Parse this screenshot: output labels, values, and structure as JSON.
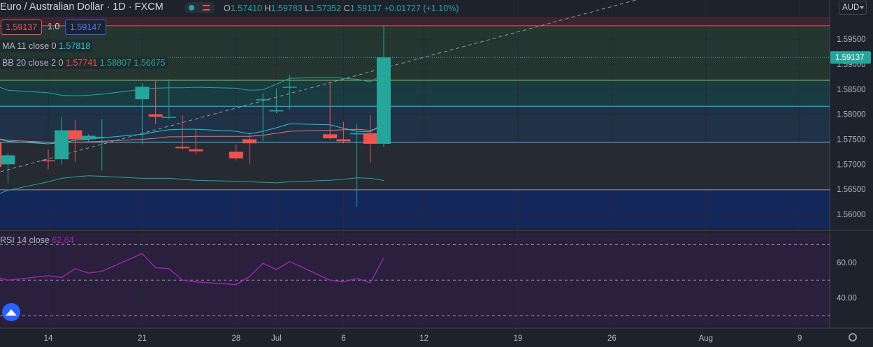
{
  "header": {
    "symbol": "Euro / Australian Dollar",
    "interval": "1D",
    "source": "FXCM",
    "open_label": "O",
    "open": "1.57410",
    "high_label": "H",
    "high": "1.59783",
    "low_label": "L",
    "low": "1.57352",
    "close_label": "C",
    "close": "1.59137",
    "change": "+0.01727 (+1.10%)"
  },
  "quote": {
    "bid": "1.59137",
    "spread": "1.0",
    "ask": "1.59147"
  },
  "indicators": {
    "ma_label": "MA 11 close 0",
    "ma_value": "1.57818",
    "bb_label": "BB 20 close 2 0",
    "bb_basis": "1.57741",
    "bb_upper": "1.58807",
    "bb_lower": "1.56675",
    "rsi_label": "RSI 14 close",
    "rsi_value": "62.64"
  },
  "currency_selector": {
    "value": "AUD",
    "icon": "chevron-down-icon"
  },
  "icons": {
    "logo": "tradingview-logo-icon",
    "settings": "gear-icon",
    "visibility": "eye-icon"
  },
  "colors": {
    "up": "#26a69a",
    "down": "#ef5350",
    "ma": "#26c6da",
    "bb": "#26a69a",
    "rsi": "#9c27b0",
    "price_tag": "#26a69a",
    "background": "#1e222d"
  },
  "chart_data": [
    {
      "type": "candlestick",
      "x_dates": [
        "Jun 10",
        "Jun 11",
        "Jun 14",
        "Jun 15",
        "Jun 16",
        "Jun 17",
        "Jun 18",
        "Jun 21",
        "Jun 22",
        "Jun 23",
        "Jun 24",
        "Jun 25",
        "Jun 28",
        "Jun 29",
        "Jun 30",
        "Jul 1",
        "Jul 2",
        "Jul 5",
        "Jul 6",
        "Jul 7",
        "Jul 8",
        "Jul 9"
      ],
      "open": [
        1.5745,
        1.57,
        1.5708,
        1.571,
        1.5768,
        1.575,
        1.5755,
        1.583,
        1.58,
        1.5795,
        1.5735,
        1.573,
        1.5725,
        1.575,
        1.583,
        1.5808,
        1.5855,
        1.576,
        1.575,
        1.5762,
        1.5762,
        1.5741
      ],
      "high": [
        1.5767,
        1.5722,
        1.573,
        1.5795,
        1.5788,
        1.576,
        1.579,
        1.5862,
        1.5867,
        1.587,
        1.5798,
        1.577,
        1.574,
        1.576,
        1.5842,
        1.5852,
        1.5878,
        1.5863,
        1.5785,
        1.578,
        1.5798,
        1.59783
      ],
      "low": [
        1.569,
        1.5662,
        1.569,
        1.57,
        1.5705,
        1.5745,
        1.5688,
        1.574,
        1.578,
        1.579,
        1.573,
        1.572,
        1.5708,
        1.57,
        1.5747,
        1.5802,
        1.581,
        1.575,
        1.5742,
        1.5615,
        1.5704,
        1.57352
      ],
      "close": [
        1.5695,
        1.5718,
        1.5706,
        1.5768,
        1.575,
        1.5757,
        1.5755,
        1.5855,
        1.5795,
        1.5795,
        1.5732,
        1.5726,
        1.5712,
        1.5742,
        1.583,
        1.5808,
        1.5855,
        1.5752,
        1.5746,
        1.5762,
        1.5741,
        1.59137
      ],
      "ma_11": [
        1.5752,
        1.5746,
        1.5741,
        1.5743,
        1.5748,
        1.575,
        1.5753,
        1.576,
        1.5765,
        1.5769,
        1.577,
        1.577,
        1.5766,
        1.5761,
        1.5766,
        1.5773,
        1.5781,
        1.5779,
        1.5772,
        1.5766,
        1.5765,
        1.57818
      ],
      "bb_basis": [
        1.5752,
        1.5748,
        1.5744,
        1.5743,
        1.5744,
        1.5745,
        1.5746,
        1.575,
        1.5752,
        1.5755,
        1.5755,
        1.5756,
        1.5756,
        1.5756,
        1.5758,
        1.5762,
        1.5766,
        1.5768,
        1.5769,
        1.577,
        1.5768,
        1.57741
      ],
      "bb_upper": [
        1.5858,
        1.5848,
        1.5843,
        1.5838,
        1.5837,
        1.5838,
        1.584,
        1.585,
        1.5852,
        1.5853,
        1.5853,
        1.5854,
        1.5852,
        1.5848,
        1.5849,
        1.586,
        1.5872,
        1.5874,
        1.5872,
        1.587,
        1.5865,
        1.58807
      ],
      "bb_lower": [
        1.5638,
        1.5648,
        1.5665,
        1.5672,
        1.5675,
        1.5677,
        1.5676,
        1.5672,
        1.5672,
        1.5672,
        1.567,
        1.5668,
        1.5666,
        1.5665,
        1.5664,
        1.5663,
        1.5665,
        1.5668,
        1.567,
        1.5673,
        1.5672,
        1.56675
      ],
      "y_ticks": [
        "1.56000",
        "1.56500",
        "1.57000",
        "1.57500",
        "1.58000",
        "1.58500",
        "1.59000",
        "1.59500"
      ],
      "ylim": [
        1.5572,
        1.5995
      ],
      "x_tick_labels": [
        "14",
        "21",
        "28",
        "Jul",
        "6",
        "12",
        "19",
        "26",
        "Aug",
        "9"
      ],
      "x_tick_dates": [
        "Jun 14",
        "Jun 21",
        "Jun 28",
        "Jul 1",
        "Jul 6",
        "Jul 12",
        "Jul 19",
        "Jul 26",
        "Aug 2",
        "Aug 9"
      ],
      "last_price": "1.59137",
      "horizontal_levels": [
        1.5977,
        1.5868,
        1.5816,
        1.5744,
        1.5649
      ],
      "trendline": {
        "from": {
          "date": "Jun 10",
          "value": 1.5682
        },
        "to": {
          "date": "Jul 28",
          "value": 1.603
        }
      }
    },
    {
      "type": "line",
      "name": "RSI 14 close",
      "x_dates": [
        "Jun 10",
        "Jun 11",
        "Jun 14",
        "Jun 15",
        "Jun 16",
        "Jun 17",
        "Jun 18",
        "Jun 21",
        "Jun 22",
        "Jun 23",
        "Jun 24",
        "Jun 25",
        "Jun 28",
        "Jun 29",
        "Jun 30",
        "Jul 1",
        "Jul 2",
        "Jul 5",
        "Jul 6",
        "Jul 7",
        "Jul 8",
        "Jul 9"
      ],
      "values": [
        52,
        50,
        52.5,
        51.5,
        56.5,
        54,
        55,
        65,
        57,
        56.5,
        50,
        49,
        47.5,
        52,
        59.5,
        56,
        60.5,
        50,
        49,
        51,
        48.5,
        62.64
      ],
      "y_ticks": [
        "40.00",
        "60.00"
      ],
      "ylim": [
        24.5,
        76.5
      ],
      "bands": [
        70,
        50,
        30
      ]
    }
  ]
}
